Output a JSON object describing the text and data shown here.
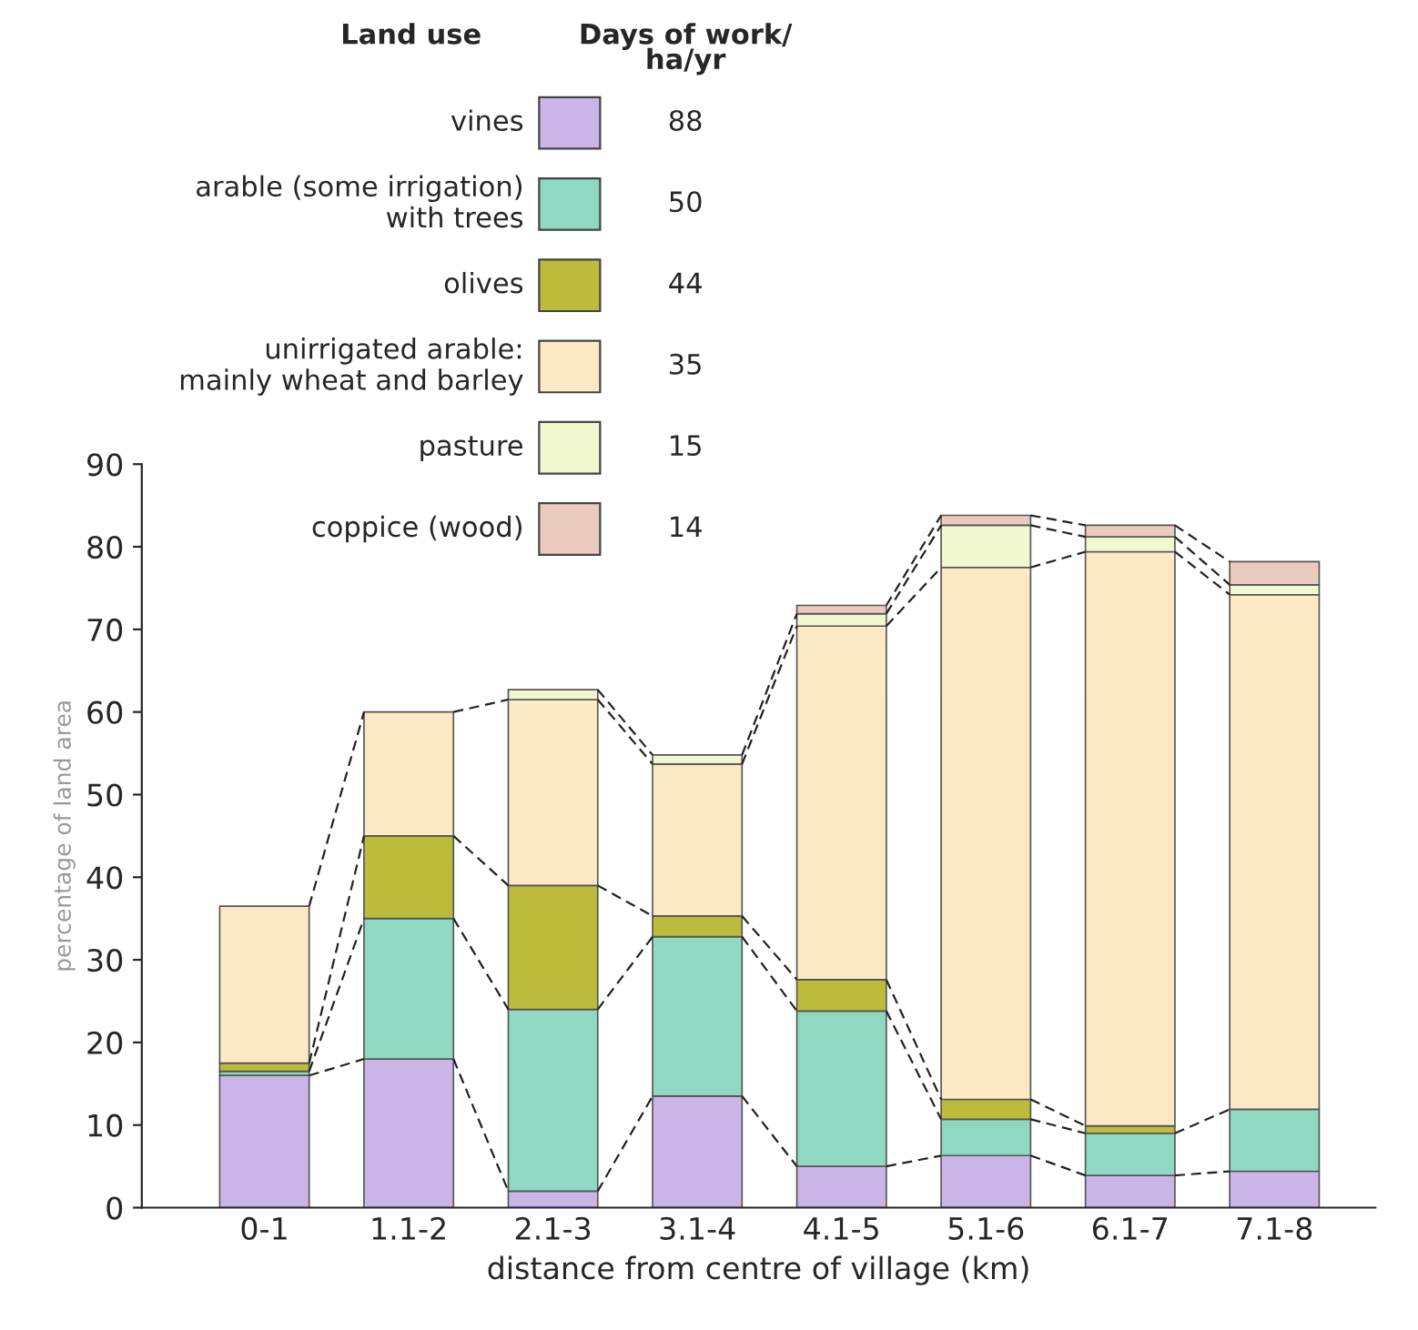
{
  "chart_data": {
    "type": "bar",
    "stacked": true,
    "xlabel": "distance from centre of village (km)",
    "ylabel": "percentage of land area",
    "legend_title": "Land use",
    "legend": "top left",
    "grid": false,
    "categories": [
      "0-1",
      "1.1-2",
      "2.1-3",
      "3.1-4",
      "4.1-5",
      "5.1-6",
      "6.1-7",
      "7.1-8"
    ],
    "ylim": [
      0,
      90
    ],
    "yticks": [
      0,
      10,
      20,
      30,
      40,
      50,
      60,
      70,
      80,
      90
    ],
    "series": [
      {
        "name": "vines",
        "color": "#cbb5e8",
        "values": [
          16,
          18,
          2,
          13.5,
          5,
          6.3,
          3.9,
          4.4
        ]
      },
      {
        "name": "arable (some irrigation)\nwith trees",
        "color": "#8fd8c2",
        "values": [
          0.5,
          17,
          22,
          19.3,
          18.8,
          4.4,
          5.1,
          7.5
        ]
      },
      {
        "name": "olives",
        "color": "#bcbb3c",
        "values": [
          1,
          10,
          15,
          2.5,
          3.8,
          2.4,
          0.9,
          0
        ]
      },
      {
        "name": "unirrigated arable:\nmainly wheat and barley",
        "color": "#fde9c4",
        "values": [
          19,
          15,
          22.5,
          18.4,
          42.8,
          64.4,
          69.5,
          62.3
        ]
      },
      {
        "name": "pasture",
        "color": "#f1f7cf",
        "values": [
          0,
          0,
          1.2,
          1.1,
          1.5,
          5.1,
          1.8,
          1.2
        ]
      },
      {
        "name": "coppice (wood)",
        "color": "#ebcbc0",
        "values": [
          0,
          0,
          0,
          0,
          1,
          1.2,
          1.4,
          2.8
        ]
      }
    ],
    "annotations": [
      "Days of work/\nha/yr",
      "88",
      "50",
      "44",
      "35",
      "15",
      "14"
    ]
  }
}
